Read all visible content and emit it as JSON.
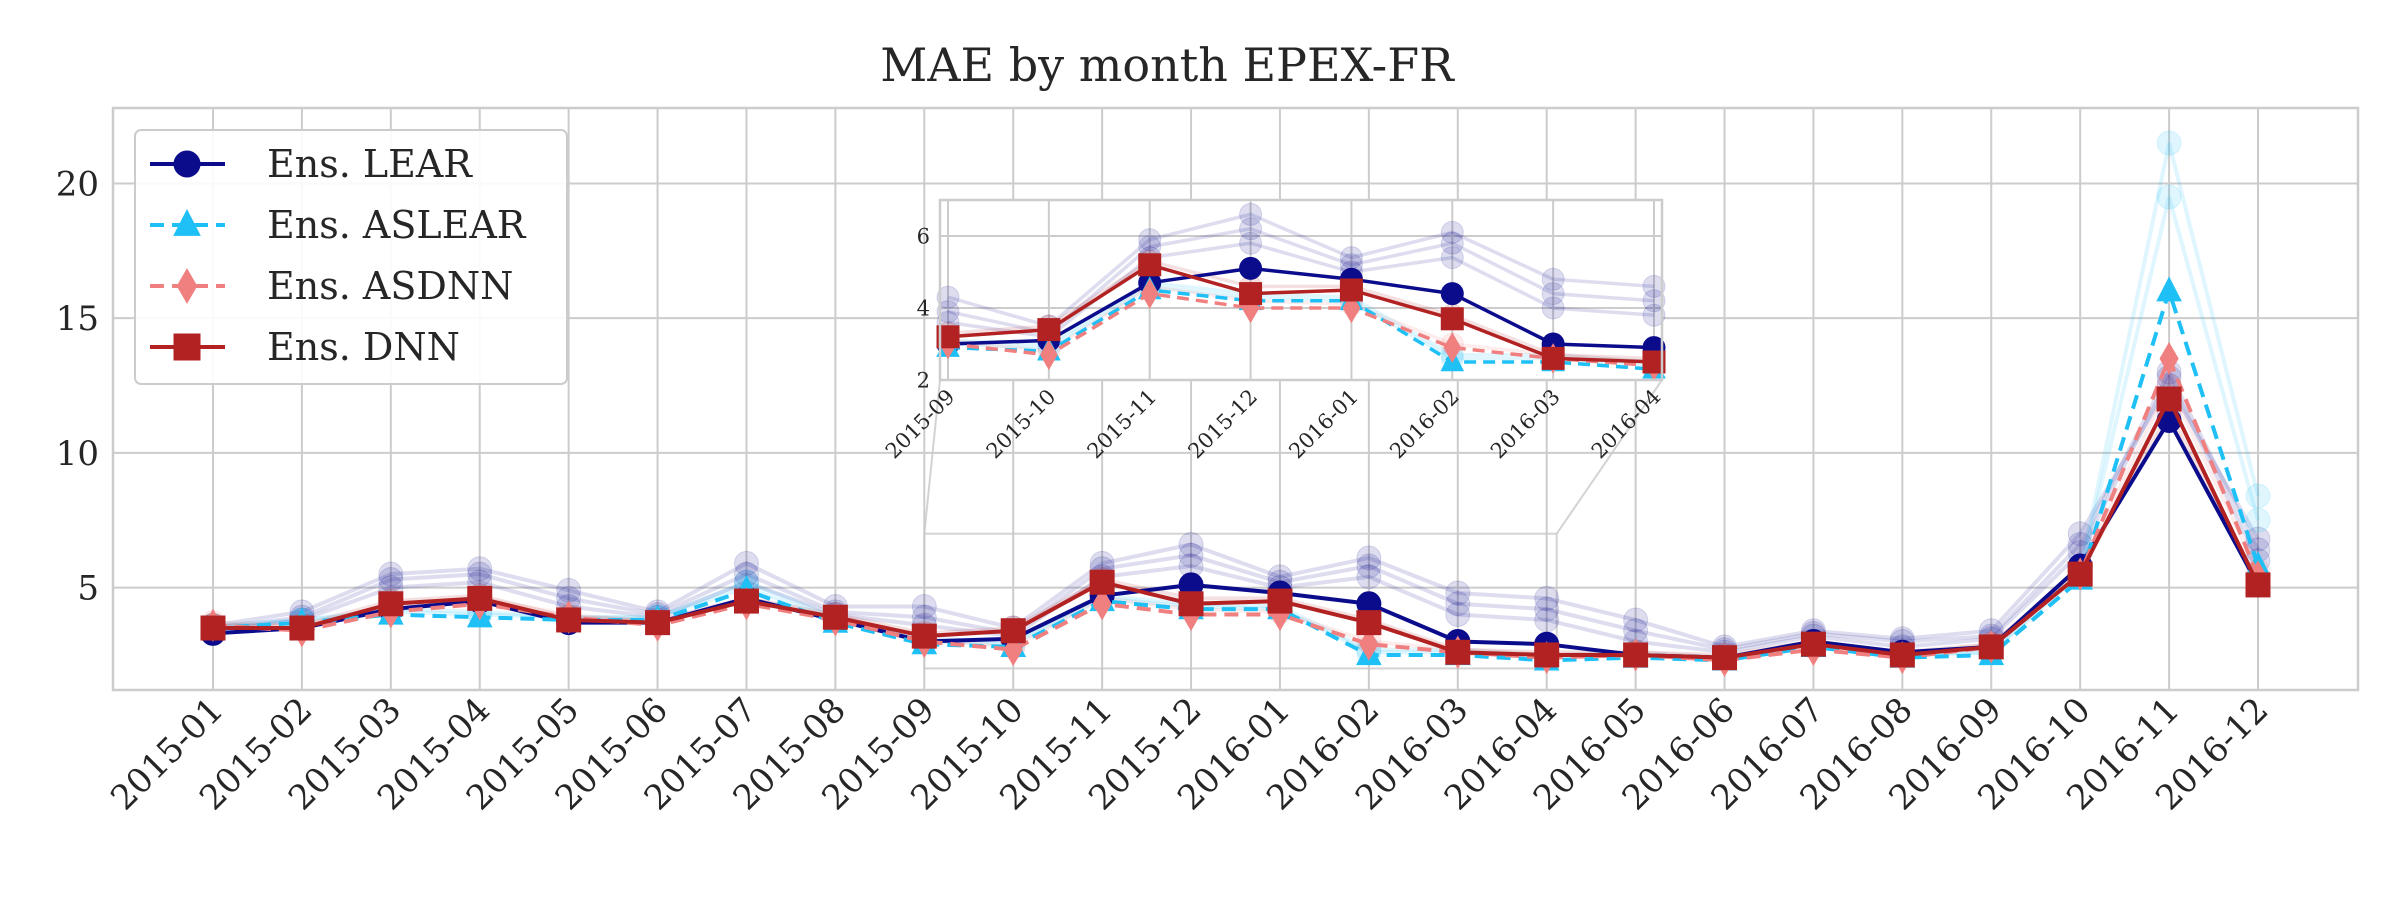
{
  "chart_data": {
    "type": "line",
    "title": "MAE by month EPEX-FR",
    "xlabel": "",
    "ylabel": "",
    "x": [
      "2015-01",
      "2015-02",
      "2015-03",
      "2015-04",
      "2015-05",
      "2015-06",
      "2015-07",
      "2015-08",
      "2015-09",
      "2015-10",
      "2015-11",
      "2015-12",
      "2016-01",
      "2016-02",
      "2016-03",
      "2016-04",
      "2016-05",
      "2016-06",
      "2016-07",
      "2016-08",
      "2016-09",
      "2016-10",
      "2016-11",
      "2016-12"
    ],
    "ylim": [
      1.2,
      22.8
    ],
    "yticks": [
      5,
      10,
      15,
      20
    ],
    "grid": true,
    "legend_position": "top-left",
    "series": [
      {
        "name": "Ens. LEAR",
        "color": "#0b0c8c",
        "marker": "circle",
        "dash": "solid",
        "values": [
          3.3,
          3.5,
          4.2,
          4.5,
          3.7,
          3.7,
          4.6,
          3.8,
          3.0,
          3.1,
          4.7,
          5.1,
          4.8,
          4.4,
          3.0,
          2.9,
          2.5,
          2.4,
          3.0,
          2.6,
          2.8,
          5.8,
          11.2,
          5.1
        ]
      },
      {
        "name": "Ens. ASLEAR",
        "color": "#1ec0f5",
        "marker": "triangle",
        "dash": "dashed",
        "values": [
          3.5,
          3.7,
          4.0,
          3.9,
          3.8,
          3.8,
          4.9,
          3.7,
          2.9,
          2.8,
          4.5,
          4.2,
          4.2,
          2.5,
          2.5,
          2.3,
          2.4,
          2.3,
          2.8,
          2.4,
          2.5,
          5.3,
          16.0,
          5.8
        ]
      },
      {
        "name": "Ens. ASDNN",
        "color": "#f08080",
        "marker": "diamond",
        "dash": "dashed",
        "values": [
          3.6,
          3.4,
          4.1,
          4.4,
          3.9,
          3.6,
          4.4,
          3.8,
          3.0,
          2.7,
          4.4,
          4.0,
          4.0,
          2.9,
          2.6,
          2.4,
          2.5,
          2.3,
          2.7,
          2.4,
          2.8,
          5.5,
          13.5,
          5.4
        ]
      },
      {
        "name": "Ens. DNN",
        "color": "#b22222",
        "marker": "square",
        "dash": "solid",
        "values": [
          3.5,
          3.5,
          4.4,
          4.6,
          3.8,
          3.7,
          4.5,
          3.9,
          3.2,
          3.4,
          5.2,
          4.4,
          4.5,
          3.7,
          2.6,
          2.5,
          2.5,
          2.4,
          2.9,
          2.5,
          2.8,
          5.5,
          12.0,
          5.1
        ]
      }
    ],
    "background_series": [
      {
        "color": "#0b0c8c",
        "values": [
          3.6,
          4.1,
          5.5,
          5.7,
          4.9,
          4.1,
          5.9,
          4.3,
          4.3,
          3.5,
          5.9,
          6.6,
          5.4,
          6.1,
          4.8,
          4.6,
          3.8,
          2.8,
          3.4,
          3.1,
          3.4,
          7.0,
          12.5,
          6.8
        ]
      },
      {
        "color": "#0b0c8c",
        "values": [
          3.5,
          3.9,
          5.3,
          5.5,
          4.6,
          4.0,
          5.5,
          4.1,
          3.9,
          3.3,
          5.7,
          6.2,
          5.2,
          5.8,
          4.4,
          4.2,
          3.4,
          2.7,
          3.3,
          3.0,
          3.2,
          6.6,
          13.0,
          6.4
        ]
      },
      {
        "color": "#0b0c8c",
        "values": [
          3.4,
          3.8,
          5.0,
          5.2,
          4.3,
          3.9,
          5.2,
          4.0,
          3.6,
          3.2,
          5.4,
          5.8,
          5.0,
          5.4,
          4.0,
          3.8,
          3.0,
          2.6,
          3.2,
          2.8,
          3.1,
          6.3,
          12.8,
          6.0
        ]
      },
      {
        "color": "#1ec0f5",
        "values": [
          3.6,
          3.8,
          4.2,
          4.1,
          3.9,
          3.9,
          5.2,
          3.9,
          3.1,
          3.0,
          4.7,
          4.4,
          4.3,
          2.7,
          2.7,
          2.5,
          2.6,
          2.4,
          2.9,
          2.5,
          2.6,
          5.6,
          21.5,
          8.4
        ]
      },
      {
        "color": "#1ec0f5",
        "values": [
          3.5,
          3.8,
          4.1,
          4.0,
          3.9,
          3.9,
          5.0,
          3.8,
          3.0,
          2.9,
          4.6,
          4.3,
          4.2,
          2.6,
          2.6,
          2.4,
          2.5,
          2.4,
          2.9,
          2.5,
          2.6,
          5.5,
          19.5,
          7.5
        ]
      },
      {
        "color": "#f08080",
        "values": [
          3.7,
          3.6,
          4.3,
          4.6,
          4.0,
          3.7,
          4.6,
          3.9,
          3.1,
          2.8,
          4.6,
          4.2,
          4.1,
          3.0,
          2.7,
          2.5,
          2.6,
          2.4,
          2.8,
          2.5,
          2.9,
          5.7,
          12.5,
          5.6
        ]
      },
      {
        "color": "#b22222",
        "values": [
          3.6,
          3.6,
          4.5,
          4.7,
          3.9,
          3.8,
          4.6,
          4.0,
          3.3,
          3.5,
          5.3,
          4.6,
          4.6,
          3.8,
          2.7,
          2.6,
          2.6,
          2.5,
          3.0,
          2.6,
          2.9,
          5.6,
          11.5,
          5.2
        ]
      }
    ],
    "inset": {
      "x": [
        "2015-09",
        "2015-10",
        "2015-11",
        "2015-12",
        "2016-01",
        "2016-02",
        "2016-03",
        "2016-04"
      ],
      "ylim": [
        2,
        7
      ],
      "yticks": [
        2,
        4,
        6
      ]
    }
  }
}
